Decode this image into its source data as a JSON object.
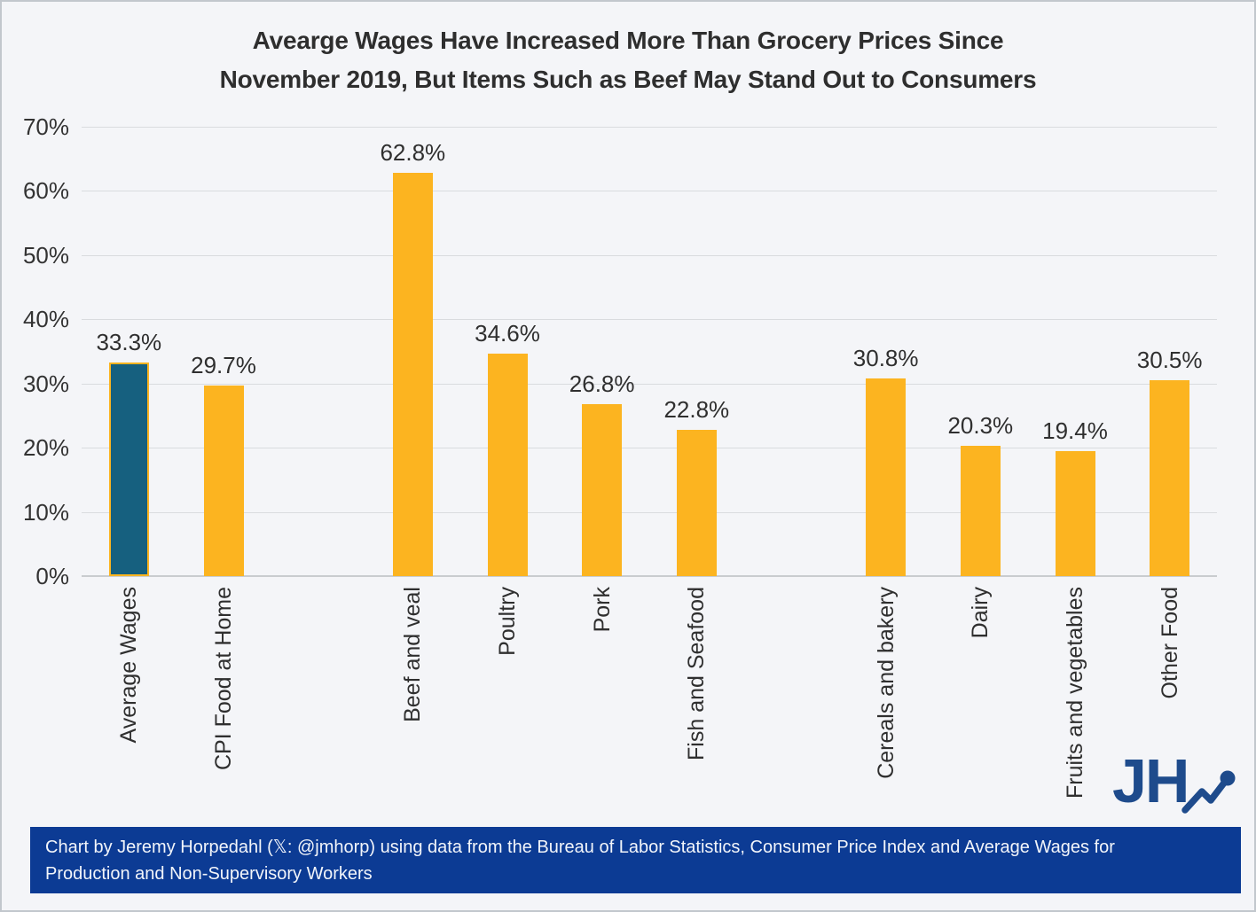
{
  "title": {
    "line1": "Avearge Wages Have Increased More Than Grocery Prices Since",
    "line2": "November 2019, But Items Such as Beef May Stand Out to Consumers"
  },
  "chart_data": {
    "type": "bar",
    "title": "Avearge Wages Have Increased More Than Grocery Prices Since November 2019, But Items Such as Beef May Stand Out to Consumers",
    "xlabel": "",
    "ylabel": "",
    "ylim": [
      0,
      70
    ],
    "yticks": [
      0,
      10,
      20,
      30,
      40,
      50,
      60,
      70
    ],
    "ytick_suffix": "%",
    "grid": true,
    "legend": false,
    "categories": [
      "Average Wages",
      "CPI Food at Home",
      "Beef and veal",
      "Poultry",
      "Pork",
      "Fish and Seafood",
      "Cereals and bakery",
      "Dairy",
      "Fruits and vegetables",
      "Other Food"
    ],
    "values": [
      33.3,
      29.7,
      62.8,
      34.6,
      26.8,
      22.8,
      30.8,
      20.3,
      19.4,
      30.5
    ],
    "bars": [
      {
        "label": "Average Wages",
        "value": 33.3,
        "display": "33.3%",
        "highlight": true,
        "gap_after": false
      },
      {
        "label": "CPI Food at Home",
        "value": 29.7,
        "display": "29.7%",
        "highlight": false,
        "gap_after": true
      },
      {
        "label": "Beef and veal",
        "value": 62.8,
        "display": "62.8%",
        "highlight": false,
        "gap_after": false
      },
      {
        "label": "Poultry",
        "value": 34.6,
        "display": "34.6%",
        "highlight": false,
        "gap_after": false
      },
      {
        "label": "Pork",
        "value": 26.8,
        "display": "26.8%",
        "highlight": false,
        "gap_after": false
      },
      {
        "label": "Fish and Seafood",
        "value": 22.8,
        "display": "22.8%",
        "highlight": false,
        "gap_after": true
      },
      {
        "label": "Cereals and bakery",
        "value": 30.8,
        "display": "30.8%",
        "highlight": false,
        "gap_after": false
      },
      {
        "label": "Dairy",
        "value": 20.3,
        "display": "20.3%",
        "highlight": false,
        "gap_after": false
      },
      {
        "label": "Fruits and vegetables",
        "value": 19.4,
        "display": "19.4%",
        "highlight": false,
        "gap_after": false
      },
      {
        "label": "Other Food",
        "value": 30.5,
        "display": "30.5%",
        "highlight": false,
        "gap_after": false
      }
    ],
    "colors": {
      "bar": "#fcb420",
      "highlight_fill": "#16607f",
      "highlight_border": "#fcb420",
      "footer_background": "#0c3b94",
      "logo": "#1e4b8c"
    }
  },
  "footer": {
    "line1": "Chart by Jeremy Horpedahl (𝕏: @jmhorp) using data from the Bureau of Labor Statistics, Consumer Price Index and Average Wages for",
    "line2": "Production and Non-Supervisory Workers"
  },
  "logo": {
    "text": "JH"
  }
}
